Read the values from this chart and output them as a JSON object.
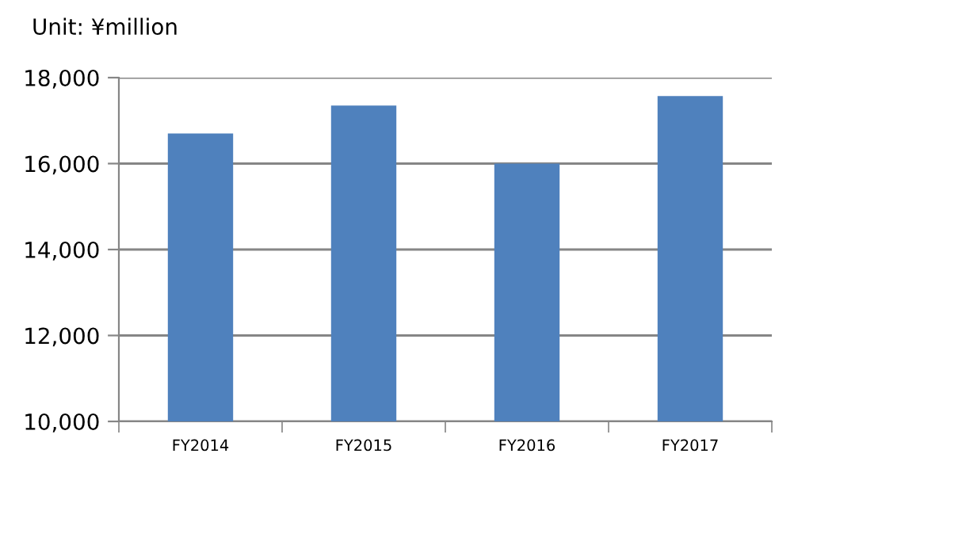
{
  "chart_data": {
    "type": "bar",
    "title": "Unit: ¥million",
    "categories": [
      "FY2014",
      "FY2015",
      "FY2016",
      "FY2017"
    ],
    "values": [
      16700,
      17350,
      16000,
      17570
    ],
    "color": "#4f81bd",
    "ylim": [
      10000,
      18000
    ],
    "yticks": [
      {
        "value": 10000,
        "label": "10,000"
      },
      {
        "value": 12000,
        "label": "12,000"
      },
      {
        "value": 14000,
        "label": "14,000"
      },
      {
        "value": 16000,
        "label": "16,000"
      },
      {
        "value": 18000,
        "label": "18,000"
      }
    ],
    "grid": "y"
  }
}
